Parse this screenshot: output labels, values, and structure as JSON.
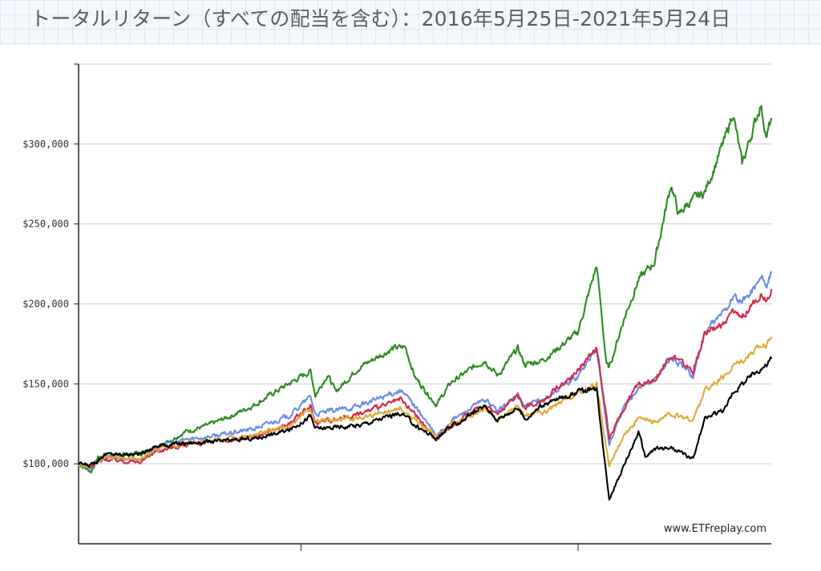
{
  "page": {
    "title": "トータルリターン（すべての配当を含む）：2016年5月25日-2021年5月24日"
  },
  "chart_data": {
    "type": "line",
    "title": "トータルリターン（すべての配当を含む）：2016年5月25日-2021年5月24日",
    "xlabel": "",
    "ylabel": "",
    "xlim": [
      "2016-05-25",
      "2021-05-24"
    ],
    "ylim": [
      50000,
      350000
    ],
    "y_ticks": [
      100000,
      150000,
      200000,
      250000,
      300000
    ],
    "y_tick_labels": [
      "$100,000",
      "$150,000",
      "$200,000",
      "$250,000",
      "$300,000"
    ],
    "x_ticks": [
      "2018-01-01",
      "2020-01-01"
    ],
    "grid": true,
    "watermark": "www.ETFreplay.com",
    "series": [
      {
        "color": "#2e8b22",
        "points": [
          [
            "2016-05-25",
            100000
          ],
          [
            "2016-06-27",
            95000
          ],
          [
            "2016-07-15",
            104000
          ],
          [
            "2016-09-01",
            106000
          ],
          [
            "2016-11-03",
            106000
          ],
          [
            "2016-12-15",
            110000
          ],
          [
            "2017-01-15",
            114000
          ],
          [
            "2017-03-01",
            120000
          ],
          [
            "2017-05-01",
            124000
          ],
          [
            "2017-07-01",
            130000
          ],
          [
            "2017-09-01",
            137000
          ],
          [
            "2017-11-01",
            146000
          ],
          [
            "2018-01-26",
            158000
          ],
          [
            "2018-02-08",
            143000
          ],
          [
            "2018-03-12",
            156000
          ],
          [
            "2018-04-02",
            145000
          ],
          [
            "2018-06-01",
            160000
          ],
          [
            "2018-08-29",
            172000
          ],
          [
            "2018-10-03",
            173000
          ],
          [
            "2018-10-29",
            154000
          ],
          [
            "2018-12-24",
            137000
          ],
          [
            "2019-02-01",
            151000
          ],
          [
            "2019-04-30",
            165000
          ],
          [
            "2019-06-03",
            155000
          ],
          [
            "2019-07-26",
            172000
          ],
          [
            "2019-08-14",
            162000
          ],
          [
            "2019-10-01",
            165000
          ],
          [
            "2019-12-31",
            182000
          ],
          [
            "2020-02-19",
            224000
          ],
          [
            "2020-03-16",
            162000
          ],
          [
            "2020-03-23",
            160000
          ],
          [
            "2020-04-30",
            190000
          ],
          [
            "2020-06-08",
            215000
          ],
          [
            "2020-07-20",
            226000
          ],
          [
            "2020-09-02",
            275000
          ],
          [
            "2020-09-23",
            255000
          ],
          [
            "2020-10-12",
            262000
          ],
          [
            "2020-11-30",
            270000
          ],
          [
            "2021-01-25",
            305000
          ],
          [
            "2021-02-12",
            320000
          ],
          [
            "2021-03-08",
            287000
          ],
          [
            "2021-04-26",
            325000
          ],
          [
            "2021-05-12",
            304000
          ],
          [
            "2021-05-24",
            316000
          ]
        ]
      },
      {
        "color": "#6b8ce8",
        "points": [
          [
            "2016-05-25",
            100000
          ],
          [
            "2016-06-27",
            97000
          ],
          [
            "2016-08-01",
            104000
          ],
          [
            "2016-11-03",
            103000
          ],
          [
            "2016-12-15",
            110000
          ],
          [
            "2017-03-01",
            115000
          ],
          [
            "2017-06-01",
            118000
          ],
          [
            "2017-09-01",
            122000
          ],
          [
            "2017-12-01",
            130000
          ],
          [
            "2018-01-26",
            142000
          ],
          [
            "2018-02-08",
            131000
          ],
          [
            "2018-06-01",
            136000
          ],
          [
            "2018-09-20",
            146000
          ],
          [
            "2018-10-29",
            136000
          ],
          [
            "2018-12-24",
            117000
          ],
          [
            "2019-02-01",
            127000
          ],
          [
            "2019-04-30",
            140000
          ],
          [
            "2019-06-03",
            133000
          ],
          [
            "2019-07-26",
            143000
          ],
          [
            "2019-08-14",
            136000
          ],
          [
            "2019-10-01",
            140000
          ],
          [
            "2019-12-31",
            155000
          ],
          [
            "2020-02-19",
            172000
          ],
          [
            "2020-03-23",
            112000
          ],
          [
            "2020-04-30",
            135000
          ],
          [
            "2020-06-08",
            148000
          ],
          [
            "2020-07-20",
            152000
          ],
          [
            "2020-09-02",
            167000
          ],
          [
            "2020-10-30",
            155000
          ],
          [
            "2020-11-30",
            182000
          ],
          [
            "2021-01-25",
            197000
          ],
          [
            "2021-02-12",
            205000
          ],
          [
            "2021-03-08",
            200000
          ],
          [
            "2021-04-26",
            216000
          ],
          [
            "2021-05-12",
            212000
          ],
          [
            "2021-05-24",
            220000
          ]
        ]
      },
      {
        "color": "#d62a48",
        "points": [
          [
            "2016-05-25",
            100000
          ],
          [
            "2016-06-27",
            98000
          ],
          [
            "2016-08-01",
            103000
          ],
          [
            "2016-11-03",
            101000
          ],
          [
            "2016-12-15",
            108000
          ],
          [
            "2017-03-01",
            112000
          ],
          [
            "2017-06-01",
            114000
          ],
          [
            "2017-09-01",
            117000
          ],
          [
            "2017-12-01",
            125000
          ],
          [
            "2018-01-26",
            136000
          ],
          [
            "2018-02-08",
            126000
          ],
          [
            "2018-06-01",
            131000
          ],
          [
            "2018-09-20",
            140000
          ],
          [
            "2018-10-29",
            131000
          ],
          [
            "2018-12-24",
            115000
          ],
          [
            "2019-02-01",
            124000
          ],
          [
            "2019-04-30",
            137000
          ],
          [
            "2019-06-03",
            131000
          ],
          [
            "2019-07-26",
            143000
          ],
          [
            "2019-08-14",
            135000
          ],
          [
            "2019-10-01",
            140000
          ],
          [
            "2019-12-31",
            158000
          ],
          [
            "2020-02-19",
            173000
          ],
          [
            "2020-03-23",
            116000
          ],
          [
            "2020-04-30",
            135000
          ],
          [
            "2020-06-08",
            150000
          ],
          [
            "2020-07-20",
            153000
          ],
          [
            "2020-09-02",
            168000
          ],
          [
            "2020-10-30",
            158000
          ],
          [
            "2020-11-30",
            182000
          ],
          [
            "2021-01-25",
            188000
          ],
          [
            "2021-02-12",
            195000
          ],
          [
            "2021-03-08",
            192000
          ],
          [
            "2021-04-26",
            206000
          ],
          [
            "2021-05-12",
            203000
          ],
          [
            "2021-05-24",
            209000
          ]
        ]
      },
      {
        "color": "#dfaa3a",
        "points": [
          [
            "2016-05-25",
            100000
          ],
          [
            "2016-06-27",
            98000
          ],
          [
            "2016-08-01",
            104000
          ],
          [
            "2016-11-03",
            103000
          ],
          [
            "2016-12-15",
            109000
          ],
          [
            "2017-03-01",
            113000
          ],
          [
            "2017-06-01",
            115000
          ],
          [
            "2017-09-01",
            118000
          ],
          [
            "2017-12-01",
            124000
          ],
          [
            "2018-01-26",
            135000
          ],
          [
            "2018-02-08",
            126000
          ],
          [
            "2018-06-01",
            129000
          ],
          [
            "2018-09-20",
            135000
          ],
          [
            "2018-10-29",
            127000
          ],
          [
            "2018-12-24",
            117000
          ],
          [
            "2019-02-01",
            125000
          ],
          [
            "2019-04-30",
            134000
          ],
          [
            "2019-06-03",
            127000
          ],
          [
            "2019-07-26",
            136000
          ],
          [
            "2019-08-14",
            130000
          ],
          [
            "2019-10-01",
            132000
          ],
          [
            "2019-12-31",
            144000
          ],
          [
            "2020-02-19",
            150000
          ],
          [
            "2020-03-23",
            98000
          ],
          [
            "2020-04-30",
            118000
          ],
          [
            "2020-06-08",
            128000
          ],
          [
            "2020-07-20",
            126000
          ],
          [
            "2020-09-02",
            131000
          ],
          [
            "2020-10-30",
            127000
          ],
          [
            "2020-11-30",
            146000
          ],
          [
            "2021-01-25",
            155000
          ],
          [
            "2021-02-12",
            162000
          ],
          [
            "2021-03-08",
            165000
          ],
          [
            "2021-04-26",
            174000
          ],
          [
            "2021-05-12",
            175000
          ],
          [
            "2021-05-24",
            179000
          ]
        ]
      },
      {
        "color": "#000000",
        "points": [
          [
            "2016-05-25",
            100000
          ],
          [
            "2016-06-27",
            99000
          ],
          [
            "2016-08-01",
            106000
          ],
          [
            "2016-11-03",
            106000
          ],
          [
            "2016-12-15",
            111000
          ],
          [
            "2017-03-01",
            113000
          ],
          [
            "2017-06-01",
            114000
          ],
          [
            "2017-09-01",
            116000
          ],
          [
            "2017-12-01",
            121000
          ],
          [
            "2018-01-26",
            130000
          ],
          [
            "2018-02-08",
            122000
          ],
          [
            "2018-06-01",
            124000
          ],
          [
            "2018-09-20",
            132000
          ],
          [
            "2018-10-29",
            124000
          ],
          [
            "2018-12-24",
            116000
          ],
          [
            "2019-02-01",
            123000
          ],
          [
            "2019-04-30",
            136000
          ],
          [
            "2019-06-03",
            128000
          ],
          [
            "2019-07-26",
            135000
          ],
          [
            "2019-08-14",
            128000
          ],
          [
            "2019-10-01",
            137000
          ],
          [
            "2019-12-31",
            145000
          ],
          [
            "2020-02-19",
            147000
          ],
          [
            "2020-03-23",
            78000
          ],
          [
            "2020-04-30",
            98000
          ],
          [
            "2020-06-08",
            120000
          ],
          [
            "2020-06-26",
            104000
          ],
          [
            "2020-07-20",
            109000
          ],
          [
            "2020-09-02",
            110000
          ],
          [
            "2020-10-30",
            103000
          ],
          [
            "2020-11-30",
            128000
          ],
          [
            "2021-01-25",
            135000
          ],
          [
            "2021-02-12",
            145000
          ],
          [
            "2021-03-08",
            150000
          ],
          [
            "2021-04-26",
            160000
          ],
          [
            "2021-05-12",
            162000
          ],
          [
            "2021-05-24",
            166000
          ]
        ]
      }
    ]
  }
}
